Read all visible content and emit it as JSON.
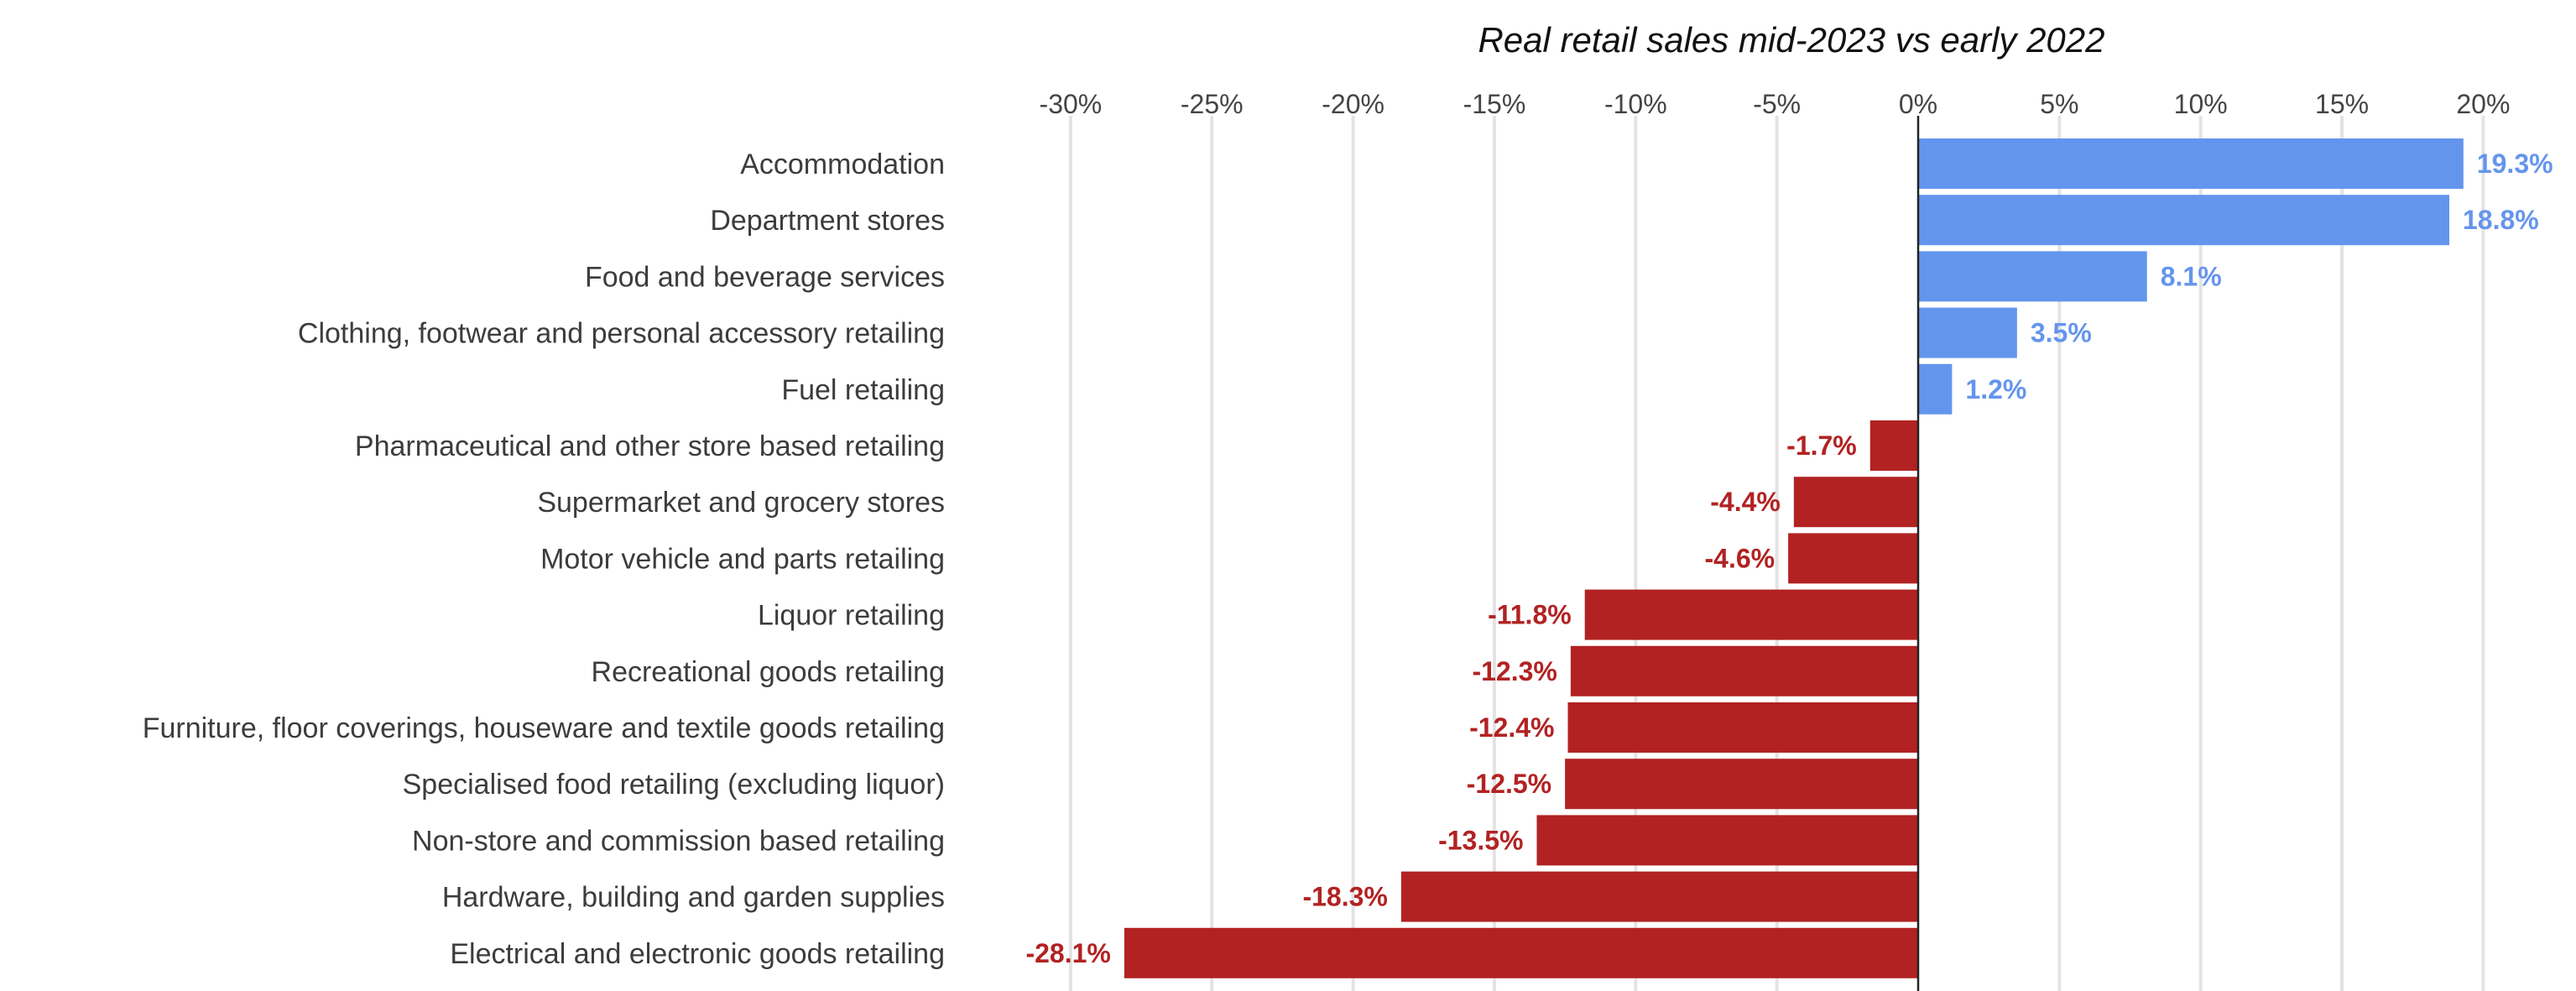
{
  "chart_data": {
    "type": "bar",
    "orientation": "horizontal",
    "title": "Real retail sales mid-2023 vs early 2022",
    "xlabel": "",
    "ylabel": "",
    "xlim": [
      -32,
      21.5
    ],
    "grid": true,
    "legend": "none",
    "x_ticks": [
      {
        "value": -30,
        "label": "-30%"
      },
      {
        "value": -25,
        "label": "-25%"
      },
      {
        "value": -20,
        "label": "-20%"
      },
      {
        "value": -15,
        "label": "-15%"
      },
      {
        "value": -10,
        "label": "-10%"
      },
      {
        "value": -5,
        "label": "-5%"
      },
      {
        "value": 0,
        "label": "0%"
      },
      {
        "value": 5,
        "label": "5%"
      },
      {
        "value": 10,
        "label": "10%"
      },
      {
        "value": 15,
        "label": "15%"
      },
      {
        "value": 20,
        "label": "20%"
      }
    ],
    "categories": [
      "Accommodation",
      "Department stores",
      "Food and beverage services",
      "Clothing, footwear and personal accessory retailing",
      "Fuel retailing",
      "Pharmaceutical and other store based retailing",
      "Supermarket and grocery stores",
      "Motor vehicle and parts retailing",
      "Liquor retailing",
      "Recreational goods retailing",
      "Furniture, floor coverings, houseware and textile goods retailing",
      "Specialised food retailing (excluding liquor)",
      "Non-store and commission based retailing",
      "Hardware, building and garden supplies",
      "Electrical and electronic goods retailing"
    ],
    "values": [
      19.3,
      18.8,
      8.1,
      3.5,
      1.2,
      -1.7,
      -4.4,
      -4.6,
      -11.8,
      -12.3,
      -12.4,
      -12.5,
      -13.5,
      -18.3,
      -28.1
    ],
    "value_labels": [
      "19.3%",
      "18.8%",
      "8.1%",
      "3.5%",
      "1.2%",
      "-1.7%",
      "-4.4%",
      "-4.6%",
      "-11.8%",
      "-12.3%",
      "-12.4%",
      "-12.5%",
      "-13.5%",
      "-18.3%",
      "-28.1%"
    ],
    "colors": {
      "positive": "#6495ED",
      "negative": "#B22222",
      "gridline": "#e3e3e3",
      "zero_line": "#222222"
    }
  }
}
